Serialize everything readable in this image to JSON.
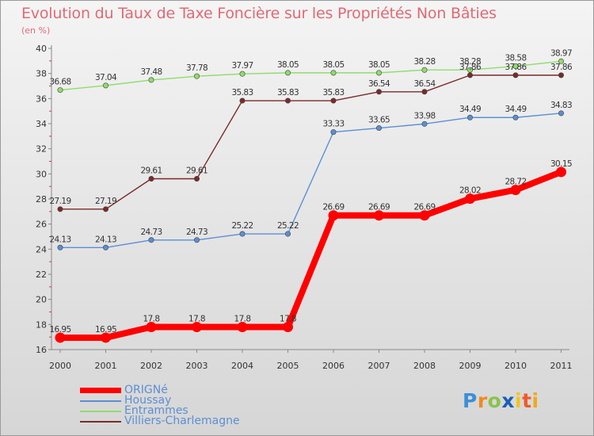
{
  "chart_data": {
    "type": "line",
    "title": "Evolution du Taux de Taxe Foncière sur les Propriétés Non Bâties",
    "subtitle": "(en %)",
    "categories": [
      "2000",
      "2001",
      "2002",
      "2003",
      "2004",
      "2005",
      "2006",
      "2007",
      "2008",
      "2009",
      "2010",
      "2011"
    ],
    "ylim": [
      16,
      40
    ],
    "yticks": [
      "16",
      "18",
      "20",
      "22",
      "24",
      "26",
      "28",
      "30",
      "32",
      "34",
      "36",
      "38",
      "40"
    ],
    "grid": false,
    "series": [
      {
        "name": "ORIGNé",
        "color": "#ff0000",
        "values": [
          16.95,
          16.95,
          17.8,
          17.8,
          17.8,
          17.8,
          26.69,
          26.69,
          26.69,
          28.02,
          28.72,
          30.15
        ],
        "labels": [
          "16.95",
          "16.95",
          "17.8",
          "17.8",
          "17.8",
          "17.8",
          "26.69",
          "26.69",
          "26.69",
          "28.02",
          "28.72",
          "30.15"
        ]
      },
      {
        "name": "Houssay",
        "color": "#5b8fd3",
        "values": [
          24.13,
          24.13,
          24.73,
          24.73,
          25.22,
          25.22,
          33.33,
          33.65,
          33.98,
          34.49,
          34.49,
          34.83
        ],
        "labels": [
          "24.13",
          "24.13",
          "24.73",
          "24.73",
          "25.22",
          "25.22",
          "33.33",
          "33.65",
          "33.98",
          "34.49",
          "34.49",
          "34.83"
        ]
      },
      {
        "name": "Entrammes",
        "color": "#90dc6c",
        "values": [
          36.68,
          37.04,
          37.48,
          37.78,
          37.97,
          38.05,
          38.05,
          38.05,
          38.28,
          38.28,
          38.58,
          38.97
        ],
        "labels": [
          "36.68",
          "37.04",
          "37.48",
          "37.78",
          "37.97",
          "38.05",
          "38.05",
          "38.05",
          "38.28",
          "38.28",
          "38.58",
          "38.97"
        ]
      },
      {
        "name": "Villiers-Charlemagne",
        "color": "#7a2a2a",
        "values": [
          27.19,
          27.19,
          29.61,
          29.61,
          35.83,
          35.83,
          35.83,
          36.54,
          36.54,
          37.86,
          37.86,
          37.86
        ],
        "labels": [
          "27.19",
          "27.19",
          "29.61",
          "29.61",
          "35.83",
          "35.83",
          "35.83",
          "36.54",
          "36.54",
          "37.86",
          "37.86",
          "37.86"
        ]
      }
    ]
  },
  "legend": {
    "items": [
      {
        "label": "ORIGNé",
        "color": "#ff0000"
      },
      {
        "label": "Houssay",
        "color": "#5b8fd3"
      },
      {
        "label": "Entrammes",
        "color": "#90dc6c"
      },
      {
        "label": "Villiers-Charlemagne",
        "color": "#7a2a2a"
      }
    ]
  },
  "logo": {
    "letters": [
      "P",
      "r",
      "o",
      "x",
      "i",
      "t",
      "i"
    ],
    "colors": [
      "#3b8fd8",
      "#f28a1c",
      "#8bc34a",
      "#1a5fb4",
      "#f2c41c",
      "#ef5b2a",
      "#f2a81c"
    ]
  }
}
